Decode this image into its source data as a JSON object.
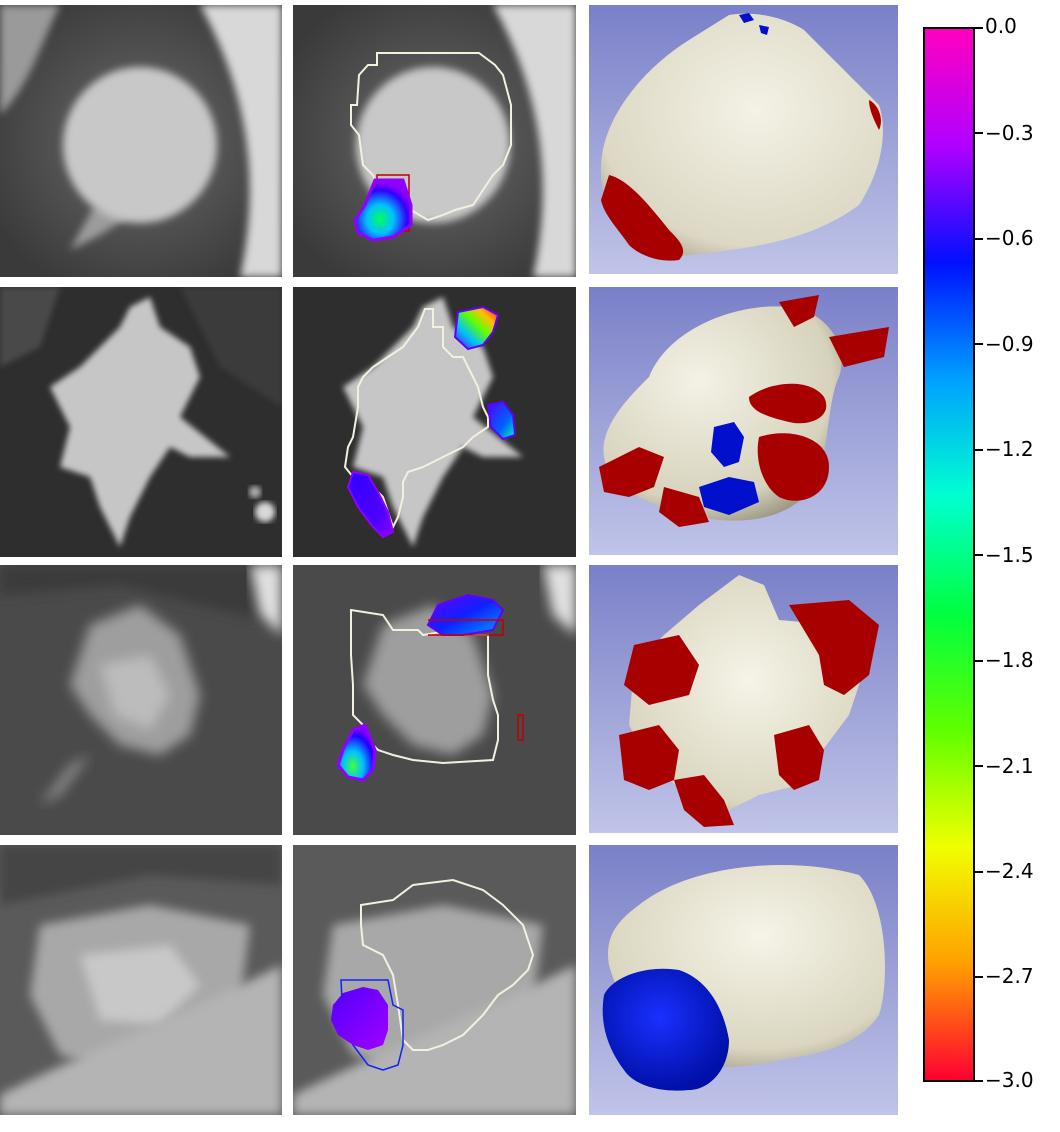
{
  "figure": {
    "rows": [
      {
        "ct": "nodule-1",
        "overlay": "nodule-1",
        "mesh": "nodule-1"
      },
      {
        "ct": "nodule-2",
        "overlay": "nodule-2",
        "mesh": "nodule-2"
      },
      {
        "ct": "nodule-3",
        "overlay": "nodule-3",
        "mesh": "nodule-3"
      },
      {
        "ct": "nodule-4",
        "overlay": "nodule-4",
        "mesh": "nodule-4"
      }
    ]
  },
  "colorbar": {
    "colormap": "gist_rainbow",
    "range": [
      -3.0,
      0.0
    ],
    "ticks": [
      "0.0",
      "−0.3",
      "−0.6",
      "−0.9",
      "−1.2",
      "−1.5",
      "−1.8",
      "−2.1",
      "−2.4",
      "−2.7",
      "−3.0"
    ],
    "tick_values": [
      0.0,
      -0.3,
      -0.6,
      -0.9,
      -1.2,
      -1.5,
      -1.8,
      -2.1,
      -2.4,
      -2.7,
      -3.0
    ],
    "colors": [
      "#ff00c0",
      "#b000ff",
      "#0010ff",
      "#00a0ff",
      "#00ffd0",
      "#00ff40",
      "#60ff00",
      "#f0ff00",
      "#ffa000",
      "#ff0030"
    ]
  }
}
